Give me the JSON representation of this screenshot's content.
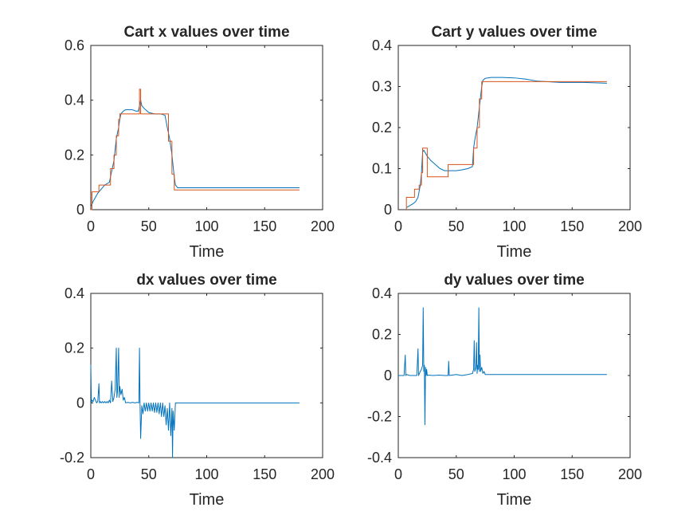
{
  "chart_data": [
    {
      "type": "line",
      "title": "Cart x values over time",
      "xlabel": "Time",
      "ylabel": "",
      "xlim": [
        0,
        200
      ],
      "ylim": [
        0,
        0.6
      ],
      "xticks": [
        "0",
        "50",
        "100",
        "150",
        "200"
      ],
      "yticks": [
        "0",
        "0.2",
        "0.4",
        "0.6"
      ],
      "grid": false,
      "series": [
        {
          "color": "#0072BD",
          "x": [
            0,
            2,
            4,
            6,
            8,
            10,
            12,
            14,
            16,
            17,
            18,
            19,
            20,
            21,
            22,
            23,
            24,
            25,
            26,
            28,
            30,
            33,
            36,
            39,
            41,
            42,
            43,
            44,
            46,
            50,
            55,
            60,
            64,
            66,
            68,
            70,
            72,
            73,
            75,
            90,
            120,
            150,
            180
          ],
          "y": [
            0.01,
            0.03,
            0.045,
            0.06,
            0.07,
            0.08,
            0.09,
            0.095,
            0.1,
            0.12,
            0.14,
            0.16,
            0.18,
            0.22,
            0.26,
            0.28,
            0.3,
            0.33,
            0.35,
            0.36,
            0.365,
            0.365,
            0.365,
            0.36,
            0.36,
            0.38,
            0.4,
            0.38,
            0.37,
            0.355,
            0.35,
            0.35,
            0.345,
            0.3,
            0.26,
            0.2,
            0.12,
            0.09,
            0.08,
            0.08,
            0.08,
            0.08,
            0.08
          ]
        },
        {
          "color": "#D95319",
          "x": [
            0,
            1,
            1,
            7,
            7,
            17,
            17,
            20,
            20,
            22,
            22,
            24,
            24,
            25,
            25,
            42,
            42,
            43,
            43,
            67,
            67,
            70,
            70,
            72,
            72,
            180
          ],
          "y": [
            0.0,
            0.0,
            0.065,
            0.065,
            0.09,
            0.09,
            0.15,
            0.15,
            0.2,
            0.2,
            0.27,
            0.27,
            0.33,
            0.33,
            0.35,
            0.35,
            0.44,
            0.44,
            0.35,
            0.35,
            0.25,
            0.25,
            0.13,
            0.13,
            0.072,
            0.072
          ]
        }
      ]
    },
    {
      "type": "line",
      "title": "Cart y values over time",
      "xlabel": "Time",
      "ylabel": "",
      "xlim": [
        0,
        200
      ],
      "ylim": [
        0,
        0.4
      ],
      "xticks": [
        "0",
        "50",
        "100",
        "150",
        "200"
      ],
      "yticks": [
        "0",
        "0.1",
        "0.2",
        "0.3",
        "0.4"
      ],
      "grid": false,
      "series": [
        {
          "color": "#0072BD",
          "x": [
            7,
            10,
            13,
            15,
            17,
            19,
            20,
            21,
            22,
            23,
            25,
            28,
            32,
            36,
            40,
            44,
            50,
            55,
            60,
            64,
            65,
            66,
            68,
            70,
            72,
            73,
            75,
            80,
            90,
            100,
            110,
            120,
            140,
            160,
            180
          ],
          "y": [
            0.005,
            0.01,
            0.015,
            0.02,
            0.03,
            0.06,
            0.09,
            0.14,
            0.145,
            0.14,
            0.13,
            0.12,
            0.11,
            0.1,
            0.095,
            0.095,
            0.095,
            0.097,
            0.1,
            0.105,
            0.15,
            0.17,
            0.2,
            0.25,
            0.3,
            0.315,
            0.32,
            0.322,
            0.322,
            0.321,
            0.318,
            0.313,
            0.31,
            0.31,
            0.308
          ]
        },
        {
          "color": "#D95319",
          "x": [
            7,
            7,
            14,
            14,
            18,
            18,
            20,
            20,
            21,
            21,
            25,
            25,
            43,
            43,
            65,
            65,
            68,
            68,
            70,
            70,
            72,
            72,
            180
          ],
          "y": [
            0.0,
            0.03,
            0.03,
            0.05,
            0.05,
            0.06,
            0.06,
            0.09,
            0.09,
            0.15,
            0.15,
            0.08,
            0.08,
            0.11,
            0.11,
            0.15,
            0.15,
            0.2,
            0.2,
            0.27,
            0.27,
            0.312,
            0.312
          ]
        }
      ]
    },
    {
      "type": "line",
      "title": "dx values over time",
      "xlabel": "Time",
      "ylabel": "",
      "xlim": [
        0,
        200
      ],
      "ylim": [
        -0.2,
        0.4
      ],
      "xticks": [
        "0",
        "50",
        "100",
        "150",
        "200"
      ],
      "yticks": [
        "-0.2",
        "0",
        "0.2",
        "0.4"
      ],
      "grid": false,
      "series": [
        {
          "color": "#0072BD",
          "x": [
            0,
            0.5,
            1,
            2,
            3,
            4,
            5,
            6,
            7,
            7.5,
            8,
            9,
            10,
            11,
            12,
            13,
            14,
            15,
            16,
            17,
            18,
            19,
            20,
            21,
            22,
            22.5,
            23,
            24,
            24.5,
            25,
            26,
            27,
            28,
            29,
            30,
            32,
            34,
            36,
            38,
            40,
            41.5,
            42,
            42.5,
            43,
            44,
            45,
            46,
            47,
            48,
            49,
            50,
            51,
            52,
            53,
            54,
            55,
            56,
            57,
            58,
            59,
            60,
            61,
            62,
            63,
            64,
            65,
            66,
            67,
            68,
            69,
            70,
            70.5,
            71,
            72,
            73,
            75,
            80,
            100,
            120,
            150,
            180
          ],
          "y": [
            0.14,
            0.0,
            0.01,
            0.005,
            0.02,
            0.01,
            0.0,
            0.005,
            0.07,
            0.0,
            0.005,
            0.0,
            0.005,
            0.0,
            0.005,
            0.0,
            0.005,
            0.0,
            0.01,
            0.0,
            0.08,
            0.005,
            0.02,
            0.05,
            0.2,
            0.02,
            0.04,
            0.2,
            0.02,
            0.06,
            0.03,
            0.05,
            0.01,
            0.02,
            0.0,
            0.002,
            0.0,
            0.002,
            0.0,
            0.002,
            0.0,
            0.2,
            -0.01,
            -0.13,
            -0.01,
            -0.04,
            0.0,
            -0.03,
            0.0,
            -0.03,
            0.0,
            -0.03,
            0.0,
            -0.03,
            0.0,
            -0.035,
            0.0,
            -0.035,
            0.0,
            -0.04,
            0.0,
            -0.05,
            0.0,
            -0.05,
            -0.01,
            -0.08,
            -0.02,
            -0.1,
            0.0,
            -0.12,
            -0.02,
            -0.2,
            -0.03,
            -0.1,
            0.0,
            0.0,
            0.0,
            0.0,
            0.0,
            0.0,
            0.0
          ]
        }
      ]
    },
    {
      "type": "line",
      "title": "dy values over time",
      "xlabel": "Time",
      "ylabel": "",
      "xlim": [
        0,
        200
      ],
      "ylim": [
        -0.4,
        0.4
      ],
      "xticks": [
        "0",
        "50",
        "100",
        "150",
        "200"
      ],
      "yticks": [
        "-0.4",
        "-0.2",
        "0",
        "0.2",
        "0.4"
      ],
      "grid": false,
      "series": [
        {
          "color": "#0072BD",
          "x": [
            0,
            5,
            6,
            6.5,
            7,
            10,
            16,
            17,
            17.5,
            19,
            20,
            21,
            21.5,
            22,
            22.5,
            23,
            23.5,
            24,
            24.5,
            25,
            26,
            30,
            35,
            40,
            43,
            43.5,
            44,
            50,
            55,
            60,
            64,
            65,
            65.5,
            66,
            67,
            67.5,
            68,
            68.5,
            69,
            69.5,
            70,
            70.5,
            71,
            72,
            73,
            74,
            75,
            80,
            100,
            120,
            150,
            180
          ],
          "y": [
            0.0,
            0.0,
            0.1,
            0.0,
            0.005,
            0.0,
            0.0,
            0.13,
            0.0,
            0.02,
            0.03,
            0.05,
            0.33,
            0.02,
            0.05,
            -0.24,
            0.04,
            0.0,
            0.03,
            0.0,
            0.002,
            0.0,
            0.002,
            0.0,
            0.0,
            0.07,
            0.0,
            0.005,
            0.0,
            0.005,
            0.01,
            0.03,
            0.17,
            0.02,
            0.04,
            0.16,
            0.01,
            0.05,
            0.03,
            0.33,
            0.02,
            0.1,
            0.02,
            0.04,
            0.01,
            0.02,
            0.005,
            0.005,
            0.005,
            0.005,
            0.005,
            0.005
          ]
        }
      ]
    }
  ]
}
